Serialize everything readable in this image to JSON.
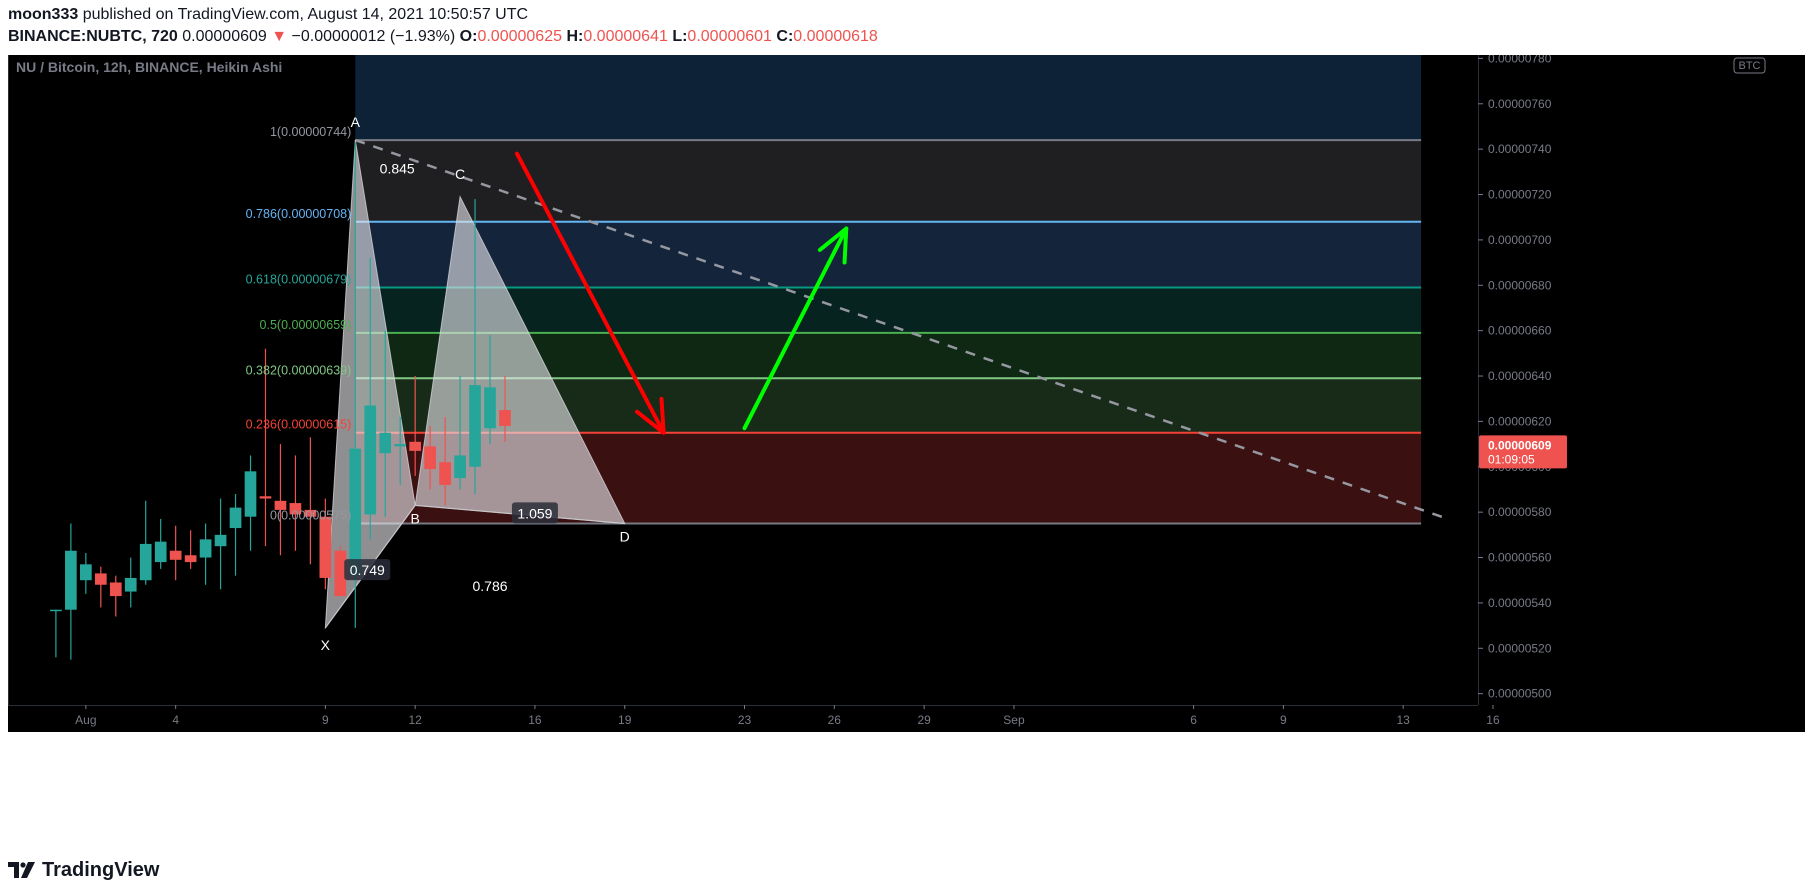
{
  "header": {
    "author": "moon333",
    "published_text": "published on TradingView.com, August 14, 2021 10:50:57 UTC",
    "symbol": "BINANCE:NUBTC, 720",
    "last": "0.00000609",
    "change_arrow": "▼",
    "change": "−0.00000012 (−1.93%)",
    "o_label": "O:",
    "o_value": "0.00000625",
    "h_label": "H:",
    "h_value": "0.00000641",
    "l_label": "L:",
    "l_value": "0.00000601",
    "c_label": "C:",
    "c_value": "0.00000618"
  },
  "chart_data": {
    "type": "candlestick",
    "title": "NU / Bitcoin, 12h, BINANCE, Heikin Ashi",
    "currency_badge": "BTC",
    "price_scale": {
      "ylim": [
        4.95e-06,
        7.815e-06
      ],
      "ticks": [
        "0.00000780",
        "0.00000760",
        "0.00000740",
        "0.00000720",
        "0.00000700",
        "0.00000680",
        "0.00000660",
        "0.00000640",
        "0.00000620",
        "0.00000600",
        "0.00000580",
        "0.00000560",
        "0.00000540",
        "0.00000520",
        "0.00000500"
      ],
      "tick_values": [
        7.8,
        7.6,
        7.4,
        7.2,
        7.0,
        6.8,
        6.6,
        6.4,
        6.2,
        6.0,
        5.8,
        5.6,
        5.4,
        5.2,
        5.0
      ],
      "tick_unit": "1e-6"
    },
    "time_scale": {
      "day_start": 0,
      "day_end": 46.5,
      "labels": [
        {
          "text": "Aug",
          "day": 0
        },
        {
          "text": "4",
          "day": 3
        },
        {
          "text": "9",
          "day": 8
        },
        {
          "text": "12",
          "day": 11
        },
        {
          "text": "16",
          "day": 15
        },
        {
          "text": "19",
          "day": 18
        },
        {
          "text": "23",
          "day": 22
        },
        {
          "text": "26",
          "day": 25
        },
        {
          "text": "29",
          "day": 28
        },
        {
          "text": "Sep",
          "day": 31
        },
        {
          "text": "6",
          "day": 37
        },
        {
          "text": "9",
          "day": 40
        },
        {
          "text": "13",
          "day": 44
        },
        {
          "text": "16",
          "day": 47
        }
      ]
    },
    "last_price": {
      "value": "0.00000609",
      "countdown": "01:09:05",
      "y": 6.09
    },
    "candles": [
      {
        "t": -1.0,
        "o": 5.37,
        "h": 5.37,
        "l": 5.16,
        "c": 5.37
      },
      {
        "t": -0.5,
        "o": 5.37,
        "h": 5.75,
        "l": 5.15,
        "c": 5.63
      },
      {
        "t": 0.0,
        "o": 5.5,
        "h": 5.62,
        "l": 5.44,
        "c": 5.57
      },
      {
        "t": 0.5,
        "o": 5.53,
        "h": 5.56,
        "l": 5.38,
        "c": 5.48
      },
      {
        "t": 1.0,
        "o": 5.49,
        "h": 5.52,
        "l": 5.34,
        "c": 5.43
      },
      {
        "t": 1.5,
        "o": 5.45,
        "h": 5.6,
        "l": 5.38,
        "c": 5.51
      },
      {
        "t": 2.0,
        "o": 5.5,
        "h": 5.85,
        "l": 5.48,
        "c": 5.66
      },
      {
        "t": 2.5,
        "o": 5.58,
        "h": 5.77,
        "l": 5.55,
        "c": 5.67
      },
      {
        "t": 3.0,
        "o": 5.63,
        "h": 5.74,
        "l": 5.5,
        "c": 5.59
      },
      {
        "t": 3.5,
        "o": 5.61,
        "h": 5.72,
        "l": 5.55,
        "c": 5.58
      },
      {
        "t": 4.0,
        "o": 5.6,
        "h": 5.75,
        "l": 5.48,
        "c": 5.68
      },
      {
        "t": 4.5,
        "o": 5.65,
        "h": 5.86,
        "l": 5.46,
        "c": 5.7
      },
      {
        "t": 5.0,
        "o": 5.73,
        "h": 5.88,
        "l": 5.52,
        "c": 5.82
      },
      {
        "t": 5.5,
        "o": 5.78,
        "h": 6.05,
        "l": 5.63,
        "c": 5.98
      },
      {
        "t": 6.0,
        "o": 5.87,
        "h": 6.52,
        "l": 5.65,
        "c": 5.86
      },
      {
        "t": 6.5,
        "o": 5.85,
        "h": 6.1,
        "l": 5.61,
        "c": 5.81
      },
      {
        "t": 7.0,
        "o": 5.84,
        "h": 6.05,
        "l": 5.63,
        "c": 5.79
      },
      {
        "t": 7.5,
        "o": 5.81,
        "h": 6.13,
        "l": 5.57,
        "c": 5.78
      },
      {
        "t": 8.0,
        "o": 5.78,
        "h": 5.86,
        "l": 5.46,
        "c": 5.51
      },
      {
        "t": 8.5,
        "o": 5.63,
        "h": 5.65,
        "l": 5.43,
        "c": 5.43
      },
      {
        "t": 9.0,
        "o": 5.52,
        "h": 7.43,
        "l": 5.29,
        "c": 6.08
      },
      {
        "t": 9.5,
        "o": 5.79,
        "h": 6.92,
        "l": 5.68,
        "c": 6.27
      },
      {
        "t": 10.0,
        "o": 6.06,
        "h": 6.6,
        "l": 5.78,
        "c": 6.15
      },
      {
        "t": 10.5,
        "o": 6.09,
        "h": 6.22,
        "l": 5.92,
        "c": 6.1
      },
      {
        "t": 11.0,
        "o": 6.11,
        "h": 6.4,
        "l": 5.96,
        "c": 6.07
      },
      {
        "t": 11.5,
        "o": 6.09,
        "h": 6.18,
        "l": 5.9,
        "c": 5.99
      },
      {
        "t": 12.0,
        "o": 6.02,
        "h": 6.22,
        "l": 5.83,
        "c": 5.92
      },
      {
        "t": 12.5,
        "o": 5.95,
        "h": 6.4,
        "l": 5.9,
        "c": 6.05
      },
      {
        "t": 13.0,
        "o": 6.0,
        "h": 7.18,
        "l": 5.88,
        "c": 6.36
      },
      {
        "t": 13.5,
        "o": 6.17,
        "h": 6.58,
        "l": 6.1,
        "c": 6.35
      },
      {
        "t": 14.0,
        "o": 6.25,
        "h": 6.4,
        "l": 6.11,
        "c": 6.18
      }
    ],
    "fib_levels": [
      {
        "ratio_label": "1(0.00000744)",
        "value": 7.44,
        "line_color": "#787b86",
        "label_color": "#9598a1",
        "fill_above": "#0d2137"
      },
      {
        "ratio_label": "0.786(0.00000708)",
        "value": 7.08,
        "line_color": "#64b5f6",
        "label_color": "#64b5f6",
        "fill_above": "#1f1f21"
      },
      {
        "ratio_label": "0.618(0.00000679)",
        "value": 6.79,
        "line_color": "#089981",
        "label_color": "#26a69a",
        "fill_above": "#14243a"
      },
      {
        "ratio_label": "0.5(0.00000659)",
        "value": 6.59,
        "line_color": "#4caf50",
        "label_color": "#4caf50",
        "fill_above": "#062320"
      },
      {
        "ratio_label": "0.382(0.00000639)",
        "value": 6.39,
        "line_color": "#81c784",
        "label_color": "#81c784",
        "fill_above": "#0e2814"
      },
      {
        "ratio_label": "0.236(0.00000615)",
        "value": 6.15,
        "line_color": "#f44336",
        "label_color": "#f44336",
        "fill_above": "#182a18"
      },
      {
        "ratio_label": "0(0.00000575)",
        "value": 5.75,
        "line_color": "#787b86",
        "label_color": "#9598a1",
        "fill_above": "#3a1010"
      }
    ],
    "harmonic": {
      "points": {
        "X": {
          "t": 8.0,
          "y": 5.29
        },
        "A": {
          "t": 9.0,
          "y": 7.44
        },
        "B": {
          "t": 11.0,
          "y": 5.83
        },
        "C": {
          "t": 12.5,
          "y": 7.19
        },
        "D": {
          "t": 18.0,
          "y": 5.75
        }
      },
      "ratios": {
        "xb": "0.749",
        "ac": "0.786",
        "bd": "1.059",
        "xd": "0.845"
      }
    },
    "annotations": {
      "red_arrow": {
        "from": {
          "t": 14.4,
          "y": 7.38
        },
        "to": {
          "t": 19.3,
          "y": 6.15
        },
        "color": "#ff0000"
      },
      "green_arrow": {
        "from": {
          "t": 22.0,
          "y": 6.17
        },
        "to": {
          "t": 25.4,
          "y": 7.05
        },
        "color": "#00ff00"
      },
      "trend_line": {
        "from": {
          "t": 9.0,
          "y": 7.44
        },
        "to": {
          "t": 45.5,
          "y": 5.77
        },
        "color": "#9598a1"
      }
    }
  },
  "footer": {
    "brand": "TradingView"
  }
}
